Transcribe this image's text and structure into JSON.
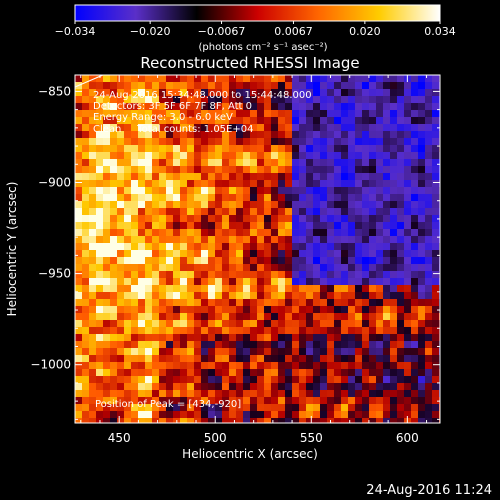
{
  "chart_data": {
    "type": "heatmap",
    "title": "Reconstructed RHESSI Image",
    "xlabel": "Heliocentric X (arcsec)",
    "ylabel": "Heliocentric Y (arcsec)",
    "xlim": [
      427,
      617
    ],
    "ylim": [
      -1032,
      -841
    ],
    "x_ticks": [
      450,
      500,
      550,
      600
    ],
    "x_tick_labels": [
      "450",
      "500",
      "550",
      "600"
    ],
    "y_ticks": [
      -850,
      -900,
      -950,
      -1000
    ],
    "y_tick_labels": [
      "−850",
      "−900",
      "−950",
      "−1000"
    ],
    "colorbar": {
      "range": [
        -0.034,
        0.034
      ],
      "ticks": [
        -0.034,
        -0.02,
        -0.0067,
        0.0067,
        0.02,
        0.034
      ],
      "tick_labels": [
        "−0.034",
        "−0.020",
        "−0.0067",
        "0.0067",
        "0.020",
        "0.034"
      ],
      "units_label": "(photons cm⁻² s⁻¹ asec⁻²)",
      "colors": [
        "#0000ff",
        "#5a2fc8",
        "#000000",
        "#cc0000",
        "#ff6600",
        "#ffcc00",
        "#ffffff"
      ]
    },
    "annotations": {
      "time_range": "24-Aug-2016 15:34:48.000 to 15:44:48.000",
      "detectors": "Detectors: 3F 5F 6F 7F 8F, Att 0",
      "energy": "Energy Range: 3.0 - 6.0 keV",
      "algorithm": "Clean     Total counts: 1.05E+04",
      "peak": "Position of Peak = [434,-920]"
    },
    "peak": [
      434,
      -920
    ],
    "grid": false,
    "legend": "none"
  },
  "footer": {
    "timestamp": "24-Aug-2016 11:24"
  }
}
